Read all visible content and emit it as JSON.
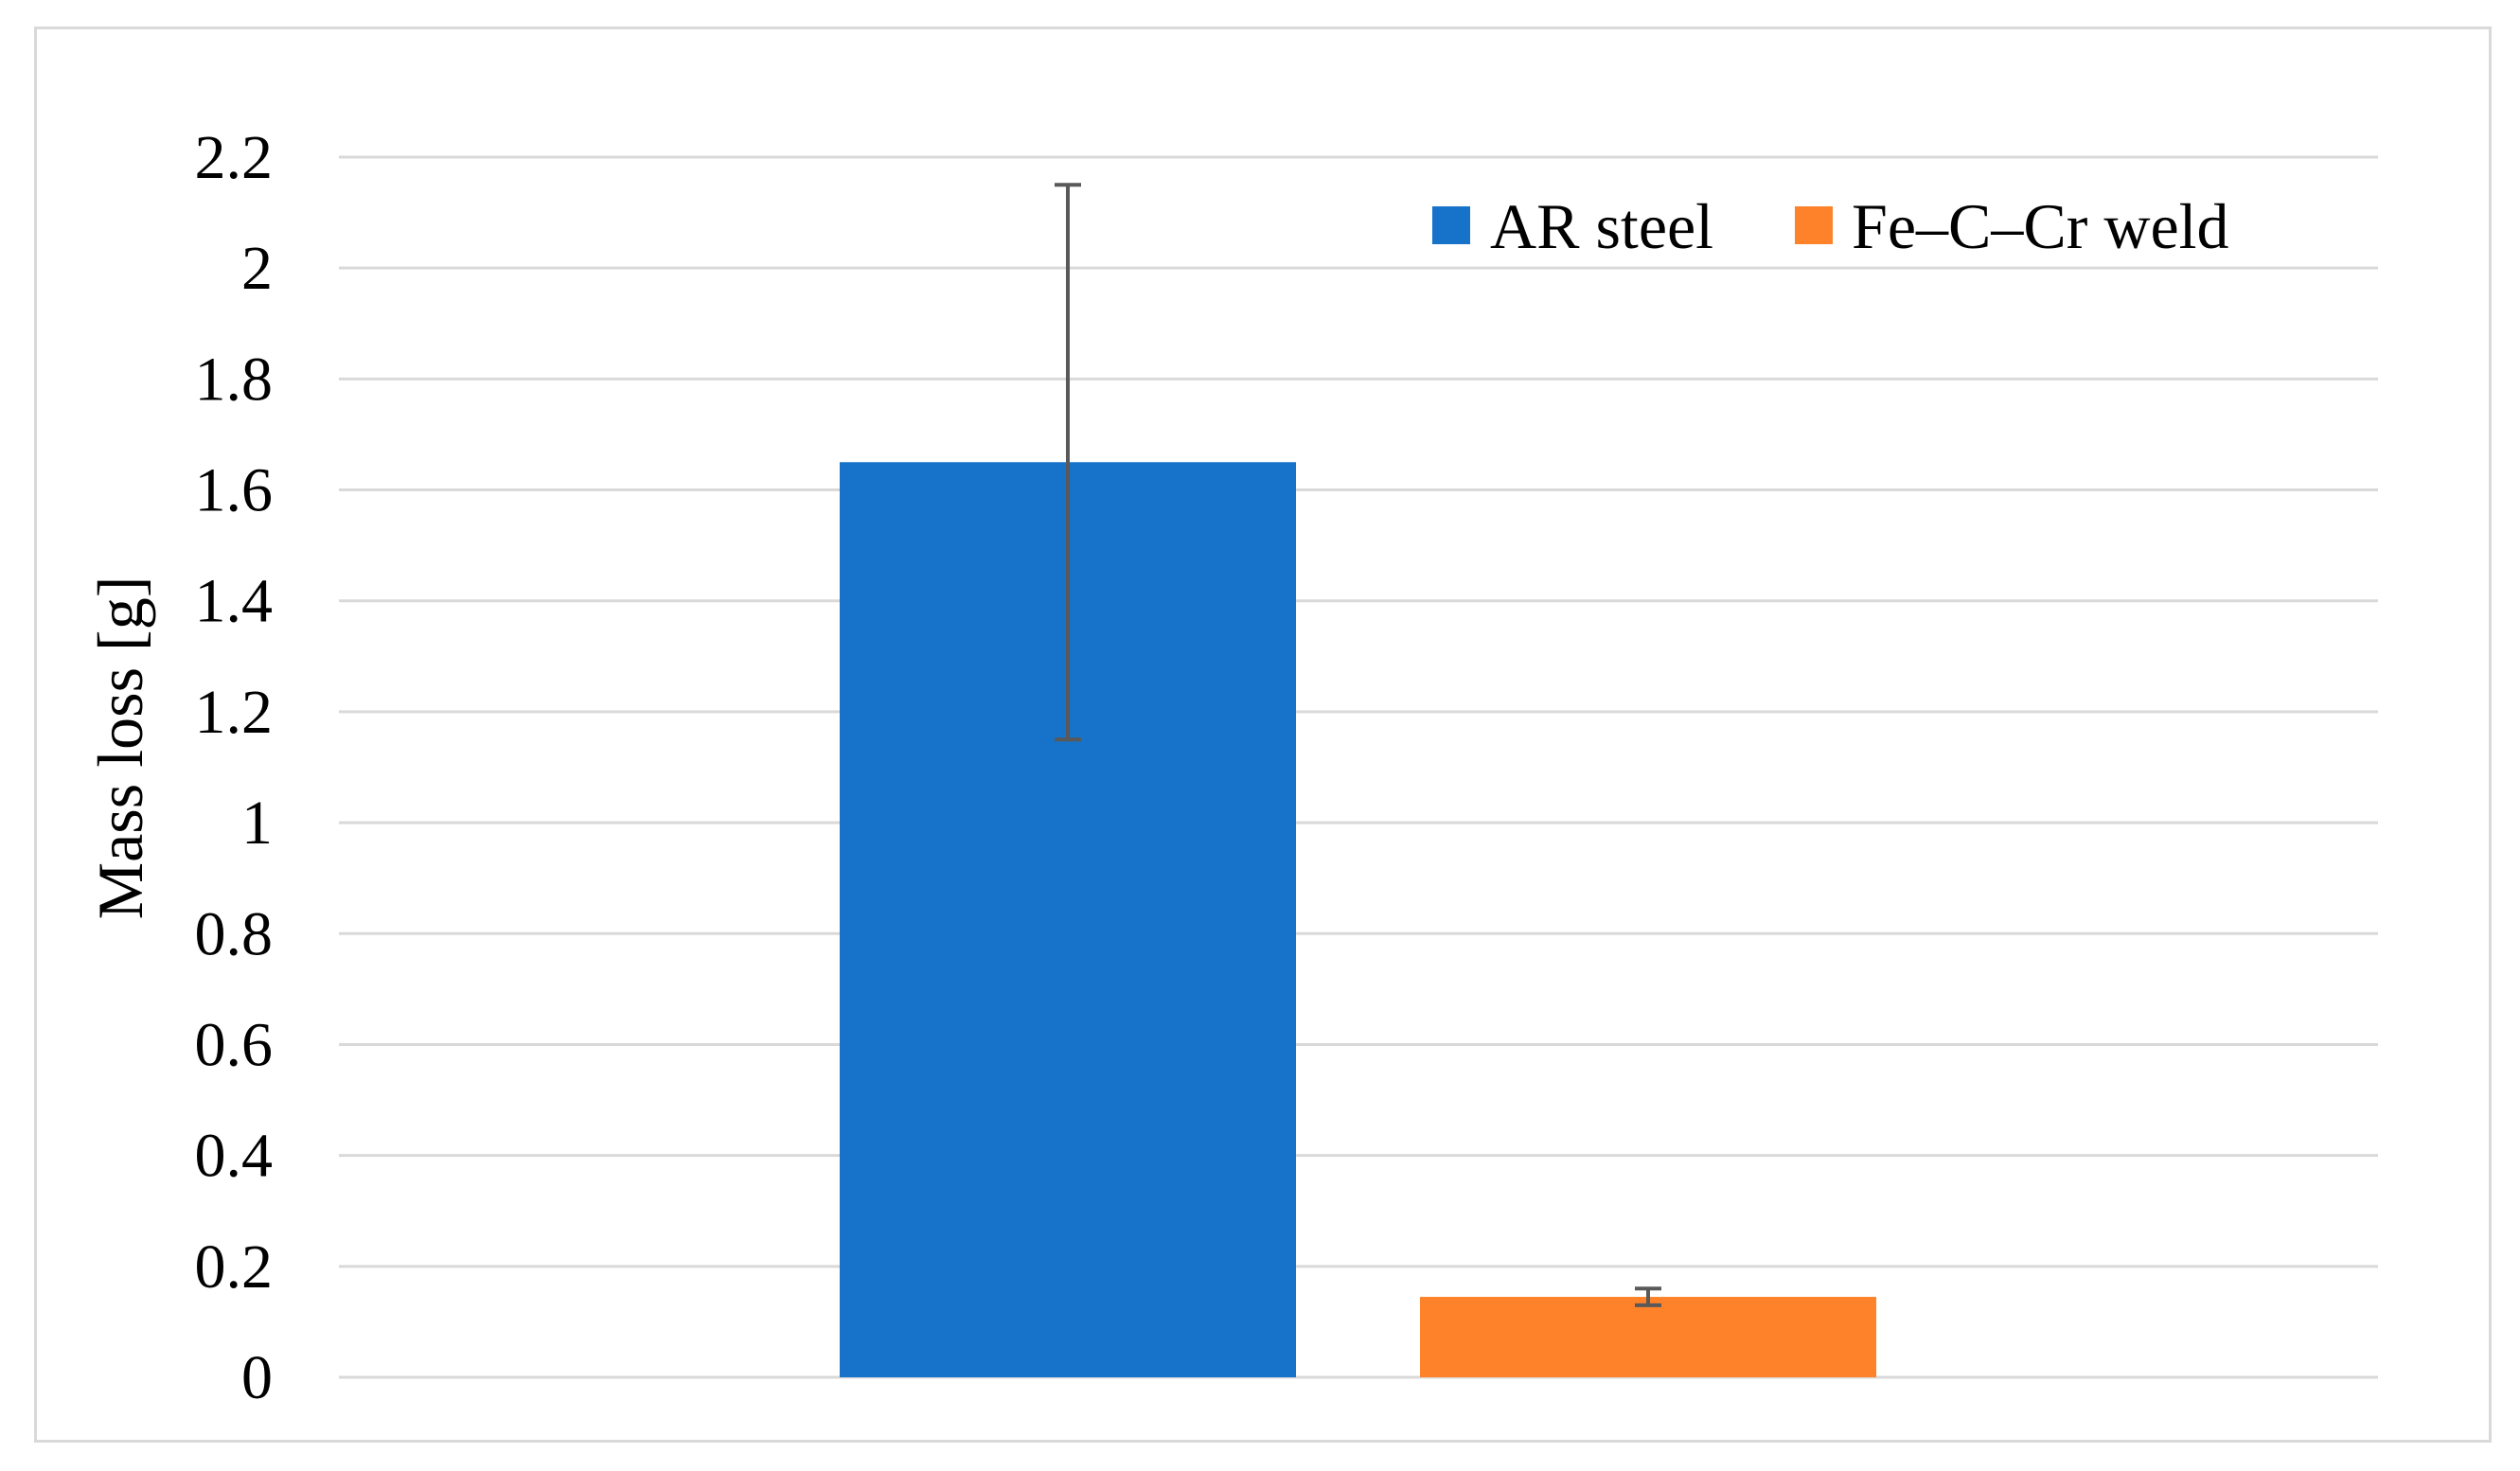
{
  "chart_data": {
    "type": "bar",
    "title": "",
    "xlabel": "",
    "ylabel": "Mass loss [g]",
    "ylim": [
      0,
      2.2
    ],
    "yticks": [
      "0",
      "0.2",
      "0.4",
      "0.6",
      "0.8",
      "1",
      "1.2",
      "1.4",
      "1.6",
      "1.8",
      "2",
      "2.2"
    ],
    "grid": true,
    "legend_position": "top-right",
    "series": [
      {
        "name": "AR steel",
        "value": 1.65,
        "error_low": 1.15,
        "error_high": 2.15,
        "color": "#1773c9"
      },
      {
        "name": "Fe–C–Cr weld",
        "value": 0.145,
        "error_low": 0.13,
        "error_high": 0.16,
        "color": "#fd822a"
      }
    ]
  },
  "colors": {
    "gridline": "#d9d9d9",
    "frame": "#d9d9d9",
    "errorbar": "#595959"
  }
}
